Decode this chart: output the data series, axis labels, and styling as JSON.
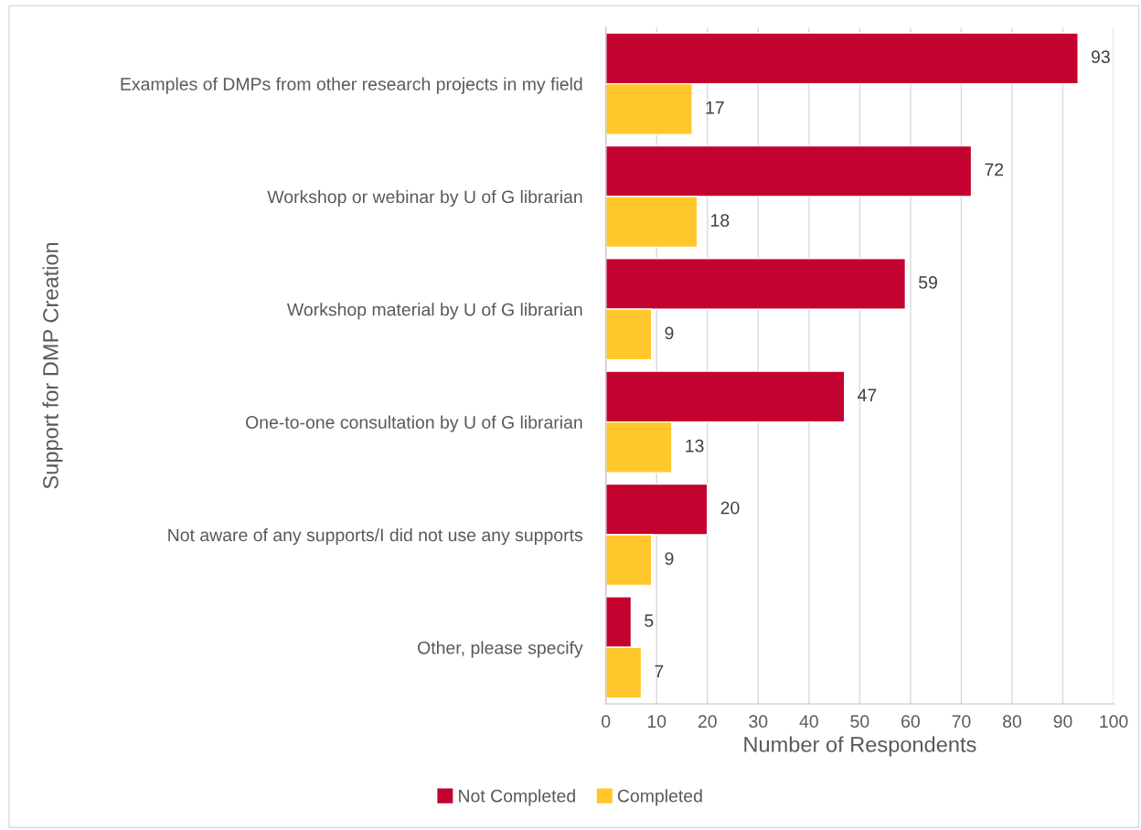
{
  "chart_data": {
    "type": "bar",
    "orientation": "horizontal",
    "xlabel": "Number of Respondents",
    "ylabel": "Support for DMP Creation",
    "categories": [
      "Examples of DMPs from other research projects in my field",
      "Workshop or webinar by U of G librarian",
      "Workshop material by U of G librarian",
      "One-to-one consultation by U of G librarian",
      "Not aware of any supports/I did not use any supports",
      "Other, please specify"
    ],
    "series": [
      {
        "name": "Not Completed",
        "color": "#c4022f",
        "values": [
          93,
          72,
          59,
          47,
          20,
          5
        ]
      },
      {
        "name": "Completed",
        "color": "#ffc72c",
        "values": [
          17,
          18,
          9,
          13,
          9,
          7
        ]
      }
    ],
    "xlim": [
      0,
      100
    ],
    "xticks": [
      0,
      10,
      20,
      30,
      40,
      50,
      60,
      70,
      80,
      90,
      100
    ],
    "grid": "x",
    "legend": "bottom",
    "data_labels": true
  }
}
